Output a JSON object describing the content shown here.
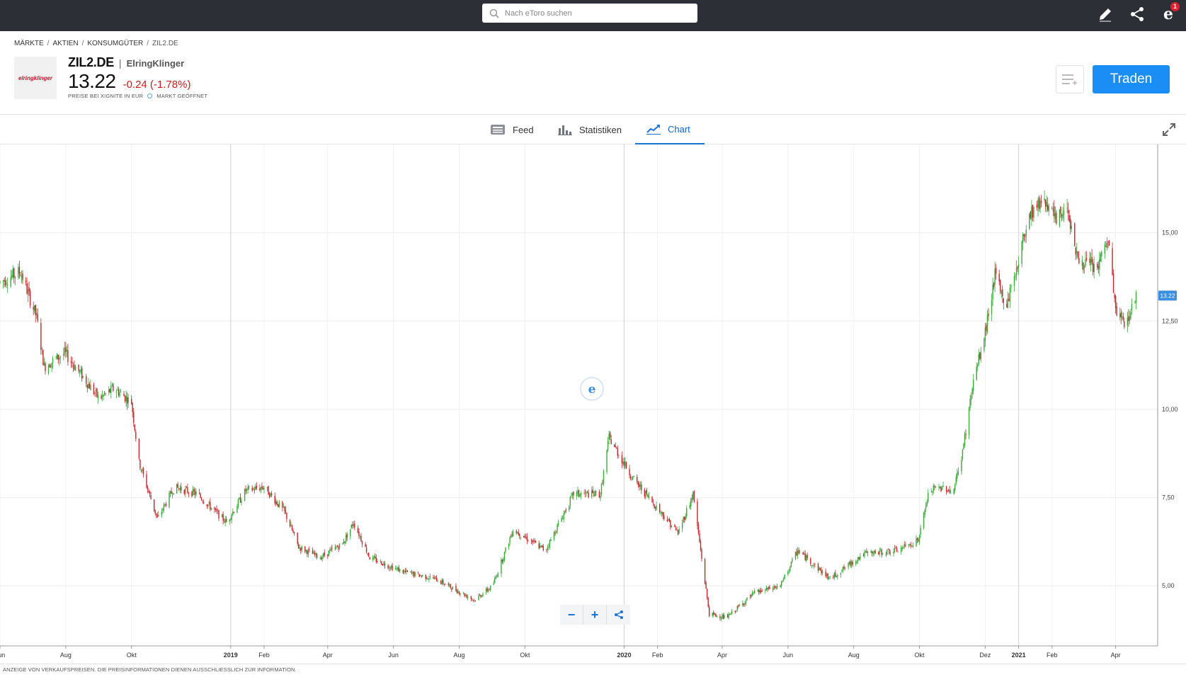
{
  "topbar": {
    "search_placeholder": "Nach eToro suchen",
    "icons": [
      "search-icon",
      "pencil-icon",
      "share-icon",
      "etoro-notifications-icon"
    ],
    "notification_count": "1"
  },
  "breadcrumb": [
    "MÄRKTE",
    "AKTIEN",
    "KONSUMGÜTER",
    "ZIL2.DE"
  ],
  "instrument": {
    "logo_text": "elringklinger",
    "ticker": "ZIL2.DE",
    "company": "ElringKlinger",
    "price": "13.22",
    "change": "-0.24 (-1.78%)",
    "change_color": "#c91c1c",
    "price_source": "PREISE BEI XIGNITE IN EUR",
    "market_status": "MARKT GEÖFFNET"
  },
  "actions": {
    "trade_label": "Traden",
    "watchlist_icon": "add-to-watchlist-icon"
  },
  "tabs": [
    {
      "label": "Feed",
      "icon": "feed-icon",
      "active": false
    },
    {
      "label": "Statistiken",
      "icon": "bar-chart-icon",
      "active": false
    },
    {
      "label": "Chart",
      "icon": "line-chart-icon",
      "active": true
    }
  ],
  "chart_data": {
    "type": "candlestick",
    "title": "",
    "y_ticks": [
      "15,00",
      "12,50",
      "10,00",
      "7,50",
      "5,00"
    ],
    "ylim": [
      3.3,
      17.5
    ],
    "x_ticks": [
      "Jun",
      "Aug",
      "Okt",
      "2019",
      "Feb",
      "Apr",
      "Jun",
      "Aug",
      "Okt",
      "2020",
      "Feb",
      "Apr",
      "Jun",
      "Aug",
      "Okt",
      "Dez",
      "2021",
      "Feb",
      "Apr"
    ],
    "xlim": [
      "2018-06-01",
      "2021-05-10"
    ],
    "current_price_label": "13.22",
    "up_color": "#3aa83a",
    "down_color": "#c0282d",
    "close_series": [
      {
        "date": "2018-06-01",
        "close": 13.6
      },
      {
        "date": "2018-06-20",
        "close": 13.9
      },
      {
        "date": "2018-07-05",
        "close": 12.6
      },
      {
        "date": "2018-07-12",
        "close": 11.2
      },
      {
        "date": "2018-07-31",
        "close": 11.6
      },
      {
        "date": "2018-08-15",
        "close": 11.0
      },
      {
        "date": "2018-09-01",
        "close": 10.3
      },
      {
        "date": "2018-09-15",
        "close": 10.6
      },
      {
        "date": "2018-10-01",
        "close": 10.2
      },
      {
        "date": "2018-10-08",
        "close": 8.5
      },
      {
        "date": "2018-10-25",
        "close": 6.9
      },
      {
        "date": "2018-11-10",
        "close": 7.8
      },
      {
        "date": "2018-12-01",
        "close": 7.6
      },
      {
        "date": "2018-12-28",
        "close": 6.8
      },
      {
        "date": "2019-01-15",
        "close": 7.7
      },
      {
        "date": "2019-02-01",
        "close": 7.8
      },
      {
        "date": "2019-02-20",
        "close": 7.1
      },
      {
        "date": "2019-03-05",
        "close": 6.1
      },
      {
        "date": "2019-03-25",
        "close": 5.8
      },
      {
        "date": "2019-04-15",
        "close": 6.2
      },
      {
        "date": "2019-04-25",
        "close": 6.8
      },
      {
        "date": "2019-05-10",
        "close": 5.8
      },
      {
        "date": "2019-06-10",
        "close": 5.4
      },
      {
        "date": "2019-07-10",
        "close": 5.2
      },
      {
        "date": "2019-08-15",
        "close": 4.6
      },
      {
        "date": "2019-09-01",
        "close": 5.0
      },
      {
        "date": "2019-09-20",
        "close": 6.6
      },
      {
        "date": "2019-10-20",
        "close": 6.0
      },
      {
        "date": "2019-11-15",
        "close": 7.6
      },
      {
        "date": "2019-12-10",
        "close": 7.6
      },
      {
        "date": "2019-12-18",
        "close": 9.2
      },
      {
        "date": "2020-01-10",
        "close": 8.0
      },
      {
        "date": "2020-02-01",
        "close": 7.2
      },
      {
        "date": "2020-02-20",
        "close": 6.5
      },
      {
        "date": "2020-03-05",
        "close": 7.6
      },
      {
        "date": "2020-03-20",
        "close": 4.2
      },
      {
        "date": "2020-04-05",
        "close": 4.1
      },
      {
        "date": "2020-05-01",
        "close": 4.8
      },
      {
        "date": "2020-05-25",
        "close": 5.0
      },
      {
        "date": "2020-06-10",
        "close": 6.0
      },
      {
        "date": "2020-07-10",
        "close": 5.2
      },
      {
        "date": "2020-08-10",
        "close": 5.9
      },
      {
        "date": "2020-09-10",
        "close": 6.0
      },
      {
        "date": "2020-09-30",
        "close": 6.3
      },
      {
        "date": "2020-10-10",
        "close": 7.7
      },
      {
        "date": "2020-10-25",
        "close": 7.8
      },
      {
        "date": "2020-11-01",
        "close": 7.6
      },
      {
        "date": "2020-11-10",
        "close": 8.8
      },
      {
        "date": "2020-11-20",
        "close": 10.8
      },
      {
        "date": "2020-11-30",
        "close": 12.0
      },
      {
        "date": "2020-12-10",
        "close": 13.8
      },
      {
        "date": "2020-12-20",
        "close": 12.9
      },
      {
        "date": "2021-01-01",
        "close": 14.2
      },
      {
        "date": "2021-01-10",
        "close": 15.5
      },
      {
        "date": "2021-01-25",
        "close": 16.0
      },
      {
        "date": "2021-02-05",
        "close": 15.3
      },
      {
        "date": "2021-02-15",
        "close": 15.8
      },
      {
        "date": "2021-02-25",
        "close": 14.2
      },
      {
        "date": "2021-03-15",
        "close": 14.0
      },
      {
        "date": "2021-03-25",
        "close": 14.8
      },
      {
        "date": "2021-04-01",
        "close": 12.8
      },
      {
        "date": "2021-04-10",
        "close": 12.4
      },
      {
        "date": "2021-04-20",
        "close": 13.22
      }
    ]
  },
  "chart_controls": {
    "icons": [
      "zoom-out-icon",
      "zoom-in-icon",
      "share-chart-icon"
    ]
  },
  "footer": {
    "disclaimer": "ANZEIGE VON VERKAUFSPREISEN. DIE PREISINFORMATIONEN DIENEN AUSSCHLIESSLICH ZUR INFORMATION."
  }
}
